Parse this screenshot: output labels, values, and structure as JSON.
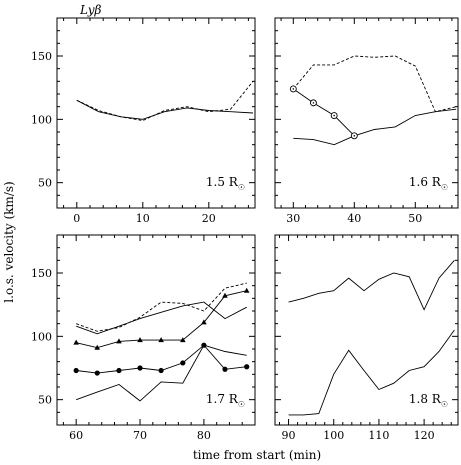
{
  "figure": {
    "title": "Lyβ",
    "ylabel": "l.o.s. velocity (km/s)",
    "xlabel": "time from start (min)"
  },
  "chart_data": [
    {
      "type": "line",
      "panel": "top-left",
      "annotation": "1.5 R",
      "annotation_symbol": "☉",
      "xlim": [
        -3,
        27
      ],
      "ylim": [
        30,
        180
      ],
      "xticks": [
        0,
        10,
        20
      ],
      "yticks": [
        50,
        100,
        150
      ],
      "show_yticklabels": true,
      "series": [
        {
          "style": "solid",
          "marker": "none",
          "x": [
            0,
            3.3,
            6.7,
            10,
            13.3,
            16.7,
            20,
            23.3,
            26.7
          ],
          "y": [
            115,
            106,
            102,
            100,
            106,
            109,
            107,
            106,
            105
          ]
        },
        {
          "style": "dashed",
          "marker": "none",
          "x": [
            0,
            3.3,
            6.7,
            10,
            13.3,
            16.7,
            20,
            23.3,
            26.7
          ],
          "y": [
            115,
            107,
            102,
            99,
            107,
            110,
            106,
            108,
            130
          ]
        }
      ]
    },
    {
      "type": "line",
      "panel": "top-right",
      "annotation": "1.6 R",
      "annotation_symbol": "☉",
      "xlim": [
        27,
        57
      ],
      "ylim": [
        30,
        180
      ],
      "xticks": [
        30,
        40,
        50
      ],
      "yticks": [
        50,
        100,
        150
      ],
      "show_yticklabels": false,
      "series": [
        {
          "style": "solid",
          "marker": "none",
          "x": [
            30,
            33.3,
            36.7,
            40,
            43.3,
            46.7,
            50,
            53.3,
            56.7
          ],
          "y": [
            85,
            84,
            80,
            87,
            92,
            94,
            103,
            106,
            108
          ]
        },
        {
          "style": "dashed",
          "marker": "none",
          "x": [
            30,
            33.3,
            36.7,
            40,
            43.3,
            46.7,
            50,
            53.3,
            56.7
          ],
          "y": [
            124,
            143,
            143,
            150,
            149,
            150,
            142,
            106,
            110
          ]
        },
        {
          "style": "solid",
          "marker": "open-circle",
          "x": [
            30,
            33.3,
            36.7,
            40
          ],
          "y": [
            124,
            113,
            103,
            87
          ]
        }
      ]
    },
    {
      "type": "line",
      "panel": "bottom-left",
      "annotation": "1.7 R",
      "annotation_symbol": "☉",
      "xlim": [
        57,
        88
      ],
      "ylim": [
        30,
        180
      ],
      "xticks": [
        60,
        70,
        80
      ],
      "yticks": [
        50,
        100,
        150
      ],
      "show_yticklabels": true,
      "series": [
        {
          "style": "solid",
          "marker": "none",
          "x": [
            60,
            63.3,
            66.7,
            70,
            73.3,
            76.7,
            80,
            83.3,
            86.7
          ],
          "y": [
            50,
            56,
            62,
            49,
            64,
            63,
            93,
            88,
            85
          ]
        },
        {
          "style": "solid",
          "marker": "filled-circle",
          "x": [
            60,
            63.3,
            66.7,
            70,
            73.3,
            76.7,
            80,
            83.3,
            86.7
          ],
          "y": [
            73,
            71,
            73,
            75,
            73,
            79,
            93,
            74,
            76
          ]
        },
        {
          "style": "solid",
          "marker": "filled-triangle",
          "x": [
            60,
            63.3,
            66.7,
            70,
            73.3,
            76.7,
            80,
            83.3,
            86.7
          ],
          "y": [
            95,
            91,
            96,
            97,
            97,
            97,
            111,
            132,
            136
          ]
        },
        {
          "style": "solid",
          "marker": "none",
          "x": [
            60,
            63.3,
            66.7,
            70,
            73.3,
            76.7,
            80,
            83.3,
            86.7
          ],
          "y": [
            108,
            102,
            108,
            114,
            119,
            124,
            127,
            114,
            123
          ]
        },
        {
          "style": "dashed",
          "marker": "none",
          "x": [
            60,
            63.3,
            66.7,
            70,
            73.3,
            76.7,
            80,
            83.3,
            86.7
          ],
          "y": [
            110,
            104,
            107,
            115,
            127,
            126,
            120,
            138,
            142
          ]
        }
      ]
    },
    {
      "type": "line",
      "panel": "bottom-right",
      "annotation": "1.8 R",
      "annotation_symbol": "☉",
      "xlim": [
        87,
        127.5
      ],
      "ylim": [
        30,
        180
      ],
      "xticks": [
        90,
        100,
        110,
        120
      ],
      "yticks": [
        50,
        100,
        150
      ],
      "show_yticklabels": false,
      "series": [
        {
          "style": "solid",
          "marker": "none",
          "x": [
            90,
            93.3,
            96.7,
            100,
            103.3,
            106.7,
            110,
            113.3,
            116.7,
            120,
            123.3,
            126.7
          ],
          "y": [
            127,
            130,
            134,
            136,
            146,
            136,
            145,
            150,
            147,
            121,
            146,
            160
          ]
        },
        {
          "style": "solid",
          "marker": "none",
          "x": [
            90,
            93.3,
            96.7,
            100,
            103.3,
            106.7,
            110,
            113.3,
            116.7,
            120,
            123.3,
            126.7
          ],
          "y": [
            38,
            38,
            39,
            70,
            89,
            73,
            58,
            63,
            73,
            76,
            88,
            105
          ]
        }
      ]
    }
  ]
}
